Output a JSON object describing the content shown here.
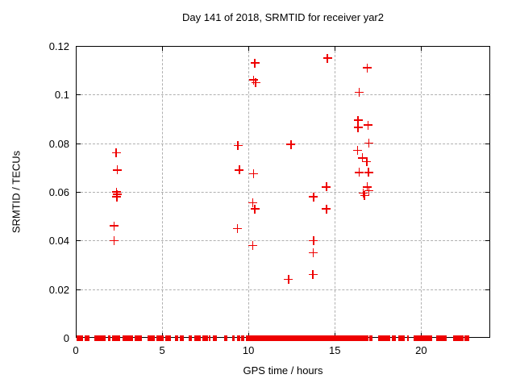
{
  "chart_data": {
    "type": "scatter",
    "title": "Day 141 of 2018, SRMTID for receiver yar2",
    "xlabel": "GPS time / hours",
    "ylabel": "SRMTID / TECUs",
    "xlim": [
      0,
      24
    ],
    "ylim": [
      0,
      0.12
    ],
    "xticks": [
      0,
      5,
      10,
      15,
      20
    ],
    "xtick_labels": [
      "0",
      "5",
      "10",
      "15",
      "20"
    ],
    "yticks": [
      0,
      0.02,
      0.04,
      0.06,
      0.08,
      0.1,
      0.12
    ],
    "ytick_labels": [
      "0",
      "0.02",
      "0.04",
      "0.06",
      "0.08",
      "0.1",
      "0.12"
    ],
    "grid": true,
    "grid_color": "#b0b0b0",
    "marker": "plus",
    "marker_color": "#ee0000",
    "legend": "none",
    "series": [
      {
        "name": "SRMTID",
        "points": [
          [
            2.34,
            0.076
          ],
          [
            2.4,
            0.069
          ],
          [
            2.36,
            0.06
          ],
          [
            2.4,
            0.059
          ],
          [
            2.38,
            0.058
          ],
          [
            2.21,
            0.046
          ],
          [
            2.21,
            0.04
          ],
          [
            9.39,
            0.079
          ],
          [
            9.47,
            0.069
          ],
          [
            9.36,
            0.045
          ],
          [
            10.37,
            0.113
          ],
          [
            10.3,
            0.106
          ],
          [
            10.42,
            0.105
          ],
          [
            10.3,
            0.0675
          ],
          [
            10.26,
            0.0555
          ],
          [
            10.37,
            0.053
          ],
          [
            10.25,
            0.038
          ],
          [
            12.46,
            0.0795
          ],
          [
            12.32,
            0.024
          ],
          [
            13.77,
            0.058
          ],
          [
            13.77,
            0.04
          ],
          [
            13.74,
            0.035
          ],
          [
            13.73,
            0.026
          ],
          [
            14.57,
            0.115
          ],
          [
            14.51,
            0.062
          ],
          [
            14.52,
            0.053
          ],
          [
            16.88,
            0.111
          ],
          [
            16.41,
            0.101
          ],
          [
            16.35,
            0.0895
          ],
          [
            16.93,
            0.0875
          ],
          [
            16.35,
            0.0865
          ],
          [
            16.97,
            0.08
          ],
          [
            16.33,
            0.077
          ],
          [
            16.6,
            0.074
          ],
          [
            16.85,
            0.0725
          ],
          [
            16.41,
            0.068
          ],
          [
            16.96,
            0.068
          ],
          [
            16.88,
            0.062
          ],
          [
            16.98,
            0.0605
          ],
          [
            16.64,
            0.0595
          ],
          [
            16.72,
            0.0585
          ]
        ]
      }
    ],
    "zero_band_segments": [
      [
        0.03,
        0.42
      ],
      [
        0.53,
        0.78
      ],
      [
        1.09,
        1.75
      ],
      [
        1.88,
        2.0
      ],
      [
        2.09,
        2.56
      ],
      [
        2.71,
        3.31
      ],
      [
        3.43,
        3.81
      ],
      [
        4.17,
        4.59
      ],
      [
        4.68,
        5.1
      ],
      [
        5.18,
        5.52
      ],
      [
        5.72,
        5.93
      ],
      [
        6.04,
        6.24
      ],
      [
        6.54,
        6.71
      ],
      [
        6.86,
        7.24
      ],
      [
        7.33,
        7.64
      ],
      [
        7.71,
        7.8
      ],
      [
        7.96,
        8.17
      ],
      [
        8.61,
        8.77
      ],
      [
        9.08,
        9.2
      ],
      [
        9.36,
        9.52
      ],
      [
        9.58,
        9.78
      ],
      [
        9.83,
        15.48
      ],
      [
        15.52,
        16.96
      ],
      [
        17.0,
        17.16
      ],
      [
        17.5,
        18.2
      ],
      [
        18.3,
        18.56
      ],
      [
        18.67,
        19.06
      ],
      [
        19.2,
        19.3
      ],
      [
        19.56,
        20.65
      ],
      [
        20.86,
        21.48
      ],
      [
        21.87,
        22.45
      ],
      [
        22.5,
        22.78
      ]
    ]
  }
}
